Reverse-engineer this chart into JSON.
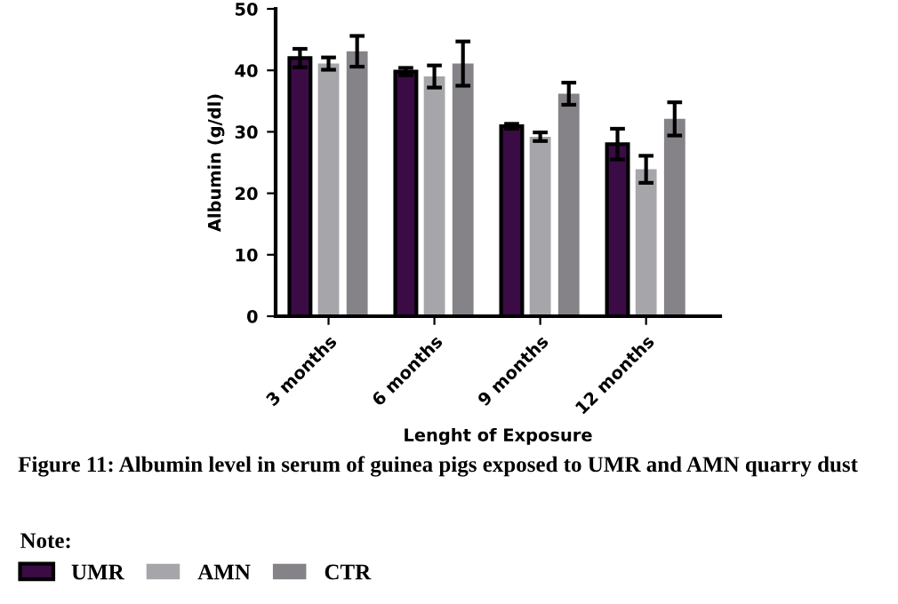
{
  "chart_data": {
    "type": "bar",
    "xlabel": "Lenght of Exposure",
    "ylabel": "Albumin (g/dl)",
    "categories": [
      "3 months",
      "6 months",
      "9 months",
      "12 months"
    ],
    "series": [
      {
        "name": "UMR",
        "color": "#3a0b45",
        "values": [
          42,
          39.8,
          30.9,
          28
        ],
        "errors": [
          1.5,
          0.6,
          0.4,
          2.5
        ]
      },
      {
        "name": "AMN",
        "color": "#a6a6aa",
        "values": [
          41.1,
          39,
          29.2,
          23.9
        ],
        "errors": [
          1,
          1.8,
          0.7,
          2.2
        ]
      },
      {
        "name": "CTR",
        "color": "#858288",
        "values": [
          43.1,
          41.1,
          36.2,
          32.1
        ],
        "errors": [
          2.5,
          3.6,
          1.8,
          2.7
        ]
      }
    ],
    "ylim": [
      0,
      50
    ],
    "yticks": [
      0,
      10,
      20,
      30,
      40,
      50
    ],
    "grid": false,
    "legend": "bottom",
    "legend_title": "Note:",
    "annotations": [
      "Figure 11: Albumin level in serum of guinea pigs exposed to UMR and AMN quarry dust"
    ]
  }
}
